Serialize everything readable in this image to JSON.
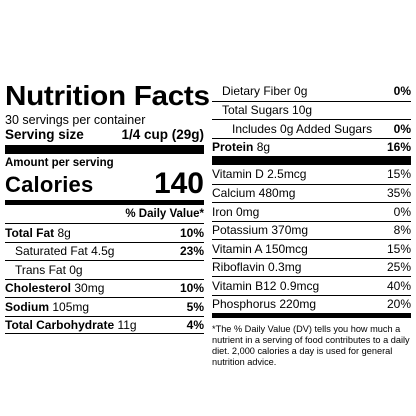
{
  "label": {
    "title": "Nutrition Facts",
    "servings_per_container": "30 servings per container",
    "serving_size_label": "Serving size",
    "serving_size_value": "1/4 cup (29g)",
    "amount_per_serving": "Amount per serving",
    "calories_label": "Calories",
    "calories_value": "140",
    "daily_value_header": "% Daily Value*"
  },
  "left_nutrients": [
    {
      "name": "Total Fat",
      "amount": "8g",
      "dv": "10%"
    },
    {
      "name": "Saturated Fat",
      "amount": "4.5g",
      "dv": "23%"
    },
    {
      "name": "Trans Fat",
      "amount": "0g",
      "dv": ""
    },
    {
      "name": "Cholesterol",
      "amount": "30mg",
      "dv": "10%"
    },
    {
      "name": "Sodium",
      "amount": "105mg",
      "dv": "5%"
    },
    {
      "name": "Total Carbohydrate",
      "amount": "11g",
      "dv": "4%"
    }
  ],
  "right_nutrients": [
    {
      "name": "Dietary Fiber",
      "amount": "0g",
      "dv": "0%"
    },
    {
      "name": "Total Sugars",
      "amount": "10g",
      "dv": ""
    },
    {
      "name": "Includes 0g Added Sugars",
      "amount": "",
      "dv": "0%"
    },
    {
      "name": "Protein",
      "amount": "8g",
      "dv": "16%"
    }
  ],
  "vitamins": [
    {
      "text": "Vitamin D 2.5mcg",
      "dv": "15%"
    },
    {
      "text": "Calcium 480mg",
      "dv": "35%"
    },
    {
      "text": "Iron 0mg",
      "dv": "0%"
    },
    {
      "text": "Potassium 370mg",
      "dv": "8%"
    },
    {
      "text": "Vitamin A 150mcg",
      "dv": "15%"
    },
    {
      "text": "Riboflavin 0.3mg",
      "dv": "25%"
    },
    {
      "text": "Vitamin B12 0.9mcg",
      "dv": "40%"
    },
    {
      "text": "Phosphorus 220mg",
      "dv": "20%"
    }
  ],
  "footnote": "*The % Daily Value (DV) tells you how much a nutrient in a serving of food contributes to a daily diet. 2,000 calories a day is used for general nutrition advice."
}
